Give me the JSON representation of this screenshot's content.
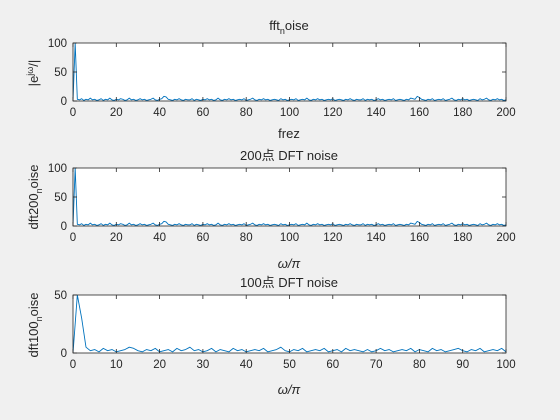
{
  "figure": {
    "background": "#f0f0f0",
    "axes_background": "#ffffff",
    "line_color": "#0072bd",
    "axis_color": "#262626"
  },
  "chart_data": [
    {
      "type": "line",
      "title": "fft_noise",
      "title_main": "fft",
      "title_sub": "n",
      "title_tail": "oise",
      "xlabel": "frez",
      "ylabel": "|e^{jω}|",
      "ylabel_main": "|e",
      "ylabel_sup": "jω",
      "ylabel_tail": "/|",
      "xlim": [
        0,
        200
      ],
      "ylim": [
        0,
        100
      ],
      "xticks": [
        0,
        20,
        40,
        60,
        80,
        100,
        120,
        140,
        160,
        180,
        200
      ],
      "yticks": [
        0,
        50,
        100
      ],
      "grid": false,
      "series": [
        {
          "x": [
            0,
            1,
            2,
            3,
            4,
            5,
            6,
            7,
            8,
            9,
            10,
            11,
            12,
            13,
            14,
            15,
            16,
            17,
            18,
            19,
            20,
            21,
            22,
            23,
            24,
            25,
            26,
            27,
            28,
            29,
            30,
            31,
            32,
            33,
            34,
            35,
            36,
            37,
            38,
            39,
            40,
            41,
            42,
            43,
            44,
            45,
            46,
            47,
            48,
            49,
            50,
            51,
            52,
            53,
            54,
            55,
            56,
            57,
            58,
            59,
            60,
            61,
            62,
            63,
            64,
            65,
            66,
            67,
            68,
            69,
            70,
            71,
            72,
            73,
            74,
            75,
            76,
            77,
            78,
            79,
            80,
            81,
            82,
            83,
            84,
            85,
            86,
            87,
            88,
            89,
            90,
            91,
            92,
            93,
            94,
            95,
            96,
            97,
            98,
            99,
            100,
            101,
            102,
            103,
            104,
            105,
            106,
            107,
            108,
            109,
            110,
            111,
            112,
            113,
            114,
            115,
            116,
            117,
            118,
            119,
            120,
            121,
            122,
            123,
            124,
            125,
            126,
            127,
            128,
            129,
            130,
            131,
            132,
            133,
            134,
            135,
            136,
            137,
            138,
            139,
            140,
            141,
            142,
            143,
            144,
            145,
            146,
            147,
            148,
            149,
            150,
            151,
            152,
            153,
            154,
            155,
            156,
            157,
            158,
            159,
            160,
            161,
            162,
            163,
            164,
            165,
            166,
            167,
            168,
            169,
            170,
            171,
            172,
            173,
            174,
            175,
            176,
            177,
            178,
            179,
            180,
            181,
            182,
            183,
            184,
            185,
            186,
            187,
            188,
            189,
            190,
            191,
            192,
            193,
            194,
            195,
            196,
            197,
            198,
            199,
            200
          ],
          "values": [
            0,
            100,
            3,
            2,
            4,
            1,
            3,
            2,
            5,
            2,
            3,
            1,
            2,
            4,
            1,
            3,
            2,
            5,
            2,
            1,
            3,
            2,
            4,
            3,
            1,
            2,
            5,
            2,
            3,
            1,
            2,
            4,
            2,
            3,
            1,
            2,
            3,
            5,
            2,
            1,
            3,
            4,
            8,
            7,
            3,
            2,
            1,
            3,
            2,
            4,
            2,
            1,
            3,
            2,
            2,
            4,
            1,
            3,
            2,
            1,
            3,
            2,
            4,
            2,
            3,
            1,
            2,
            5,
            2,
            1,
            3,
            2,
            4,
            2,
            3,
            1,
            2,
            3,
            2,
            4,
            1,
            2,
            3,
            5,
            2,
            1,
            3,
            2,
            4,
            2,
            3,
            1,
            2,
            3,
            2,
            1,
            4,
            2,
            3,
            1,
            2,
            3,
            2,
            4,
            1,
            2,
            3,
            2,
            5,
            2,
            1,
            3,
            2,
            4,
            2,
            3,
            1,
            2,
            3,
            2,
            4,
            1,
            2,
            3,
            2,
            1,
            3,
            2,
            4,
            2,
            1,
            3,
            2,
            2,
            4,
            1,
            3,
            2,
            3,
            1,
            2,
            4,
            2,
            3,
            1,
            2,
            3,
            2,
            4,
            1,
            2,
            3,
            2,
            1,
            3,
            2,
            5,
            4,
            3,
            8,
            6,
            3,
            2,
            1,
            3,
            2,
            4,
            1,
            2,
            3,
            2,
            4,
            1,
            2,
            3,
            5,
            2,
            1,
            3,
            2,
            4,
            2,
            3,
            1,
            2,
            3,
            2,
            1,
            4,
            2,
            3,
            5,
            2,
            1,
            3,
            2,
            4,
            2,
            3,
            1,
            2
          ]
        }
      ]
    },
    {
      "type": "line",
      "title": "200点 DFT noise",
      "xlabel": "ω/π",
      "ylabel": "dft200_noise",
      "ylabel_main": "dft200",
      "ylabel_sub": "n",
      "ylabel_tail": "oise",
      "xlim": [
        0,
        200
      ],
      "ylim": [
        0,
        100
      ],
      "xticks": [
        0,
        20,
        40,
        60,
        80,
        100,
        120,
        140,
        160,
        180,
        200
      ],
      "yticks": [
        0,
        50,
        100
      ],
      "grid": false,
      "series": [
        {
          "x": [
            0,
            1,
            2,
            3,
            4,
            5,
            6,
            7,
            8,
            9,
            10,
            11,
            12,
            13,
            14,
            15,
            16,
            17,
            18,
            19,
            20,
            21,
            22,
            23,
            24,
            25,
            26,
            27,
            28,
            29,
            30,
            31,
            32,
            33,
            34,
            35,
            36,
            37,
            38,
            39,
            40,
            41,
            42,
            43,
            44,
            45,
            46,
            47,
            48,
            49,
            50,
            51,
            52,
            53,
            54,
            55,
            56,
            57,
            58,
            59,
            60,
            61,
            62,
            63,
            64,
            65,
            66,
            67,
            68,
            69,
            70,
            71,
            72,
            73,
            74,
            75,
            76,
            77,
            78,
            79,
            80,
            81,
            82,
            83,
            84,
            85,
            86,
            87,
            88,
            89,
            90,
            91,
            92,
            93,
            94,
            95,
            96,
            97,
            98,
            99,
            100,
            101,
            102,
            103,
            104,
            105,
            106,
            107,
            108,
            109,
            110,
            111,
            112,
            113,
            114,
            115,
            116,
            117,
            118,
            119,
            120,
            121,
            122,
            123,
            124,
            125,
            126,
            127,
            128,
            129,
            130,
            131,
            132,
            133,
            134,
            135,
            136,
            137,
            138,
            139,
            140,
            141,
            142,
            143,
            144,
            145,
            146,
            147,
            148,
            149,
            150,
            151,
            152,
            153,
            154,
            155,
            156,
            157,
            158,
            159,
            160,
            161,
            162,
            163,
            164,
            165,
            166,
            167,
            168,
            169,
            170,
            171,
            172,
            173,
            174,
            175,
            176,
            177,
            178,
            179,
            180,
            181,
            182,
            183,
            184,
            185,
            186,
            187,
            188,
            189,
            190,
            191,
            192,
            193,
            194,
            195,
            196,
            197,
            198,
            199,
            200
          ],
          "values": [
            0,
            100,
            3,
            2,
            4,
            1,
            3,
            2,
            5,
            2,
            3,
            1,
            2,
            4,
            1,
            3,
            2,
            5,
            2,
            1,
            3,
            2,
            4,
            3,
            1,
            2,
            5,
            2,
            3,
            1,
            2,
            4,
            2,
            3,
            1,
            2,
            3,
            5,
            2,
            1,
            3,
            4,
            8,
            7,
            3,
            2,
            1,
            3,
            2,
            4,
            2,
            1,
            3,
            2,
            2,
            4,
            1,
            3,
            2,
            1,
            3,
            2,
            4,
            2,
            3,
            1,
            2,
            5,
            2,
            1,
            3,
            2,
            4,
            2,
            3,
            1,
            2,
            3,
            2,
            4,
            1,
            2,
            3,
            5,
            2,
            1,
            3,
            2,
            4,
            2,
            3,
            1,
            2,
            3,
            2,
            1,
            4,
            2,
            3,
            1,
            2,
            3,
            2,
            4,
            1,
            2,
            3,
            2,
            5,
            2,
            1,
            3,
            2,
            4,
            2,
            3,
            1,
            2,
            3,
            2,
            4,
            1,
            2,
            3,
            2,
            1,
            3,
            2,
            4,
            2,
            1,
            3,
            2,
            2,
            4,
            1,
            3,
            2,
            3,
            1,
            2,
            4,
            2,
            3,
            1,
            2,
            3,
            2,
            4,
            1,
            2,
            3,
            2,
            1,
            3,
            2,
            5,
            4,
            3,
            8,
            6,
            3,
            2,
            1,
            3,
            2,
            4,
            1,
            2,
            3,
            2,
            4,
            1,
            2,
            3,
            5,
            2,
            1,
            3,
            2,
            4,
            2,
            3,
            1,
            2,
            3,
            2,
            1,
            4,
            2,
            3,
            5,
            2,
            1,
            3,
            2,
            4,
            2,
            3,
            1,
            2
          ]
        }
      ]
    },
    {
      "type": "line",
      "title": "100点 DFT noise",
      "xlabel": "ω/π",
      "ylabel": "dft100_noise",
      "ylabel_main": "dft100",
      "ylabel_sub": "n",
      "ylabel_tail": "oise",
      "xlim": [
        0,
        100
      ],
      "ylim": [
        0,
        50
      ],
      "xticks": [
        0,
        10,
        20,
        30,
        40,
        50,
        60,
        70,
        80,
        90,
        100
      ],
      "yticks": [
        0,
        50
      ],
      "grid": false,
      "series": [
        {
          "x": [
            0,
            1,
            2,
            3,
            4,
            5,
            6,
            7,
            8,
            9,
            10,
            11,
            12,
            13,
            14,
            15,
            16,
            17,
            18,
            19,
            20,
            21,
            22,
            23,
            24,
            25,
            26,
            27,
            28,
            29,
            30,
            31,
            32,
            33,
            34,
            35,
            36,
            37,
            38,
            39,
            40,
            41,
            42,
            43,
            44,
            45,
            46,
            47,
            48,
            49,
            50,
            51,
            52,
            53,
            54,
            55,
            56,
            57,
            58,
            59,
            60,
            61,
            62,
            63,
            64,
            65,
            66,
            67,
            68,
            69,
            70,
            71,
            72,
            73,
            74,
            75,
            76,
            77,
            78,
            79,
            80,
            81,
            82,
            83,
            84,
            85,
            86,
            87,
            88,
            89,
            90,
            91,
            92,
            93,
            94,
            95,
            96,
            97,
            98,
            99,
            100
          ],
          "values": [
            0,
            50,
            30,
            5,
            2,
            3,
            1,
            4,
            2,
            3,
            1,
            2,
            3,
            5,
            4,
            2,
            1,
            3,
            2,
            4,
            1,
            2,
            3,
            1,
            4,
            2,
            3,
            5,
            2,
            3,
            1,
            2,
            4,
            1,
            3,
            2,
            1,
            4,
            2,
            3,
            1,
            2,
            3,
            2,
            4,
            1,
            2,
            3,
            5,
            2,
            1,
            3,
            2,
            4,
            1,
            2,
            3,
            2,
            4,
            1,
            2,
            3,
            1,
            4,
            2,
            3,
            2,
            1,
            3,
            1,
            2,
            4,
            2,
            3,
            1,
            2,
            3,
            2,
            4,
            1,
            3,
            2,
            1,
            4,
            2,
            3,
            1,
            2,
            3,
            4,
            2,
            1,
            3,
            2,
            4,
            1,
            2,
            3,
            2,
            4,
            1
          ]
        }
      ]
    }
  ]
}
